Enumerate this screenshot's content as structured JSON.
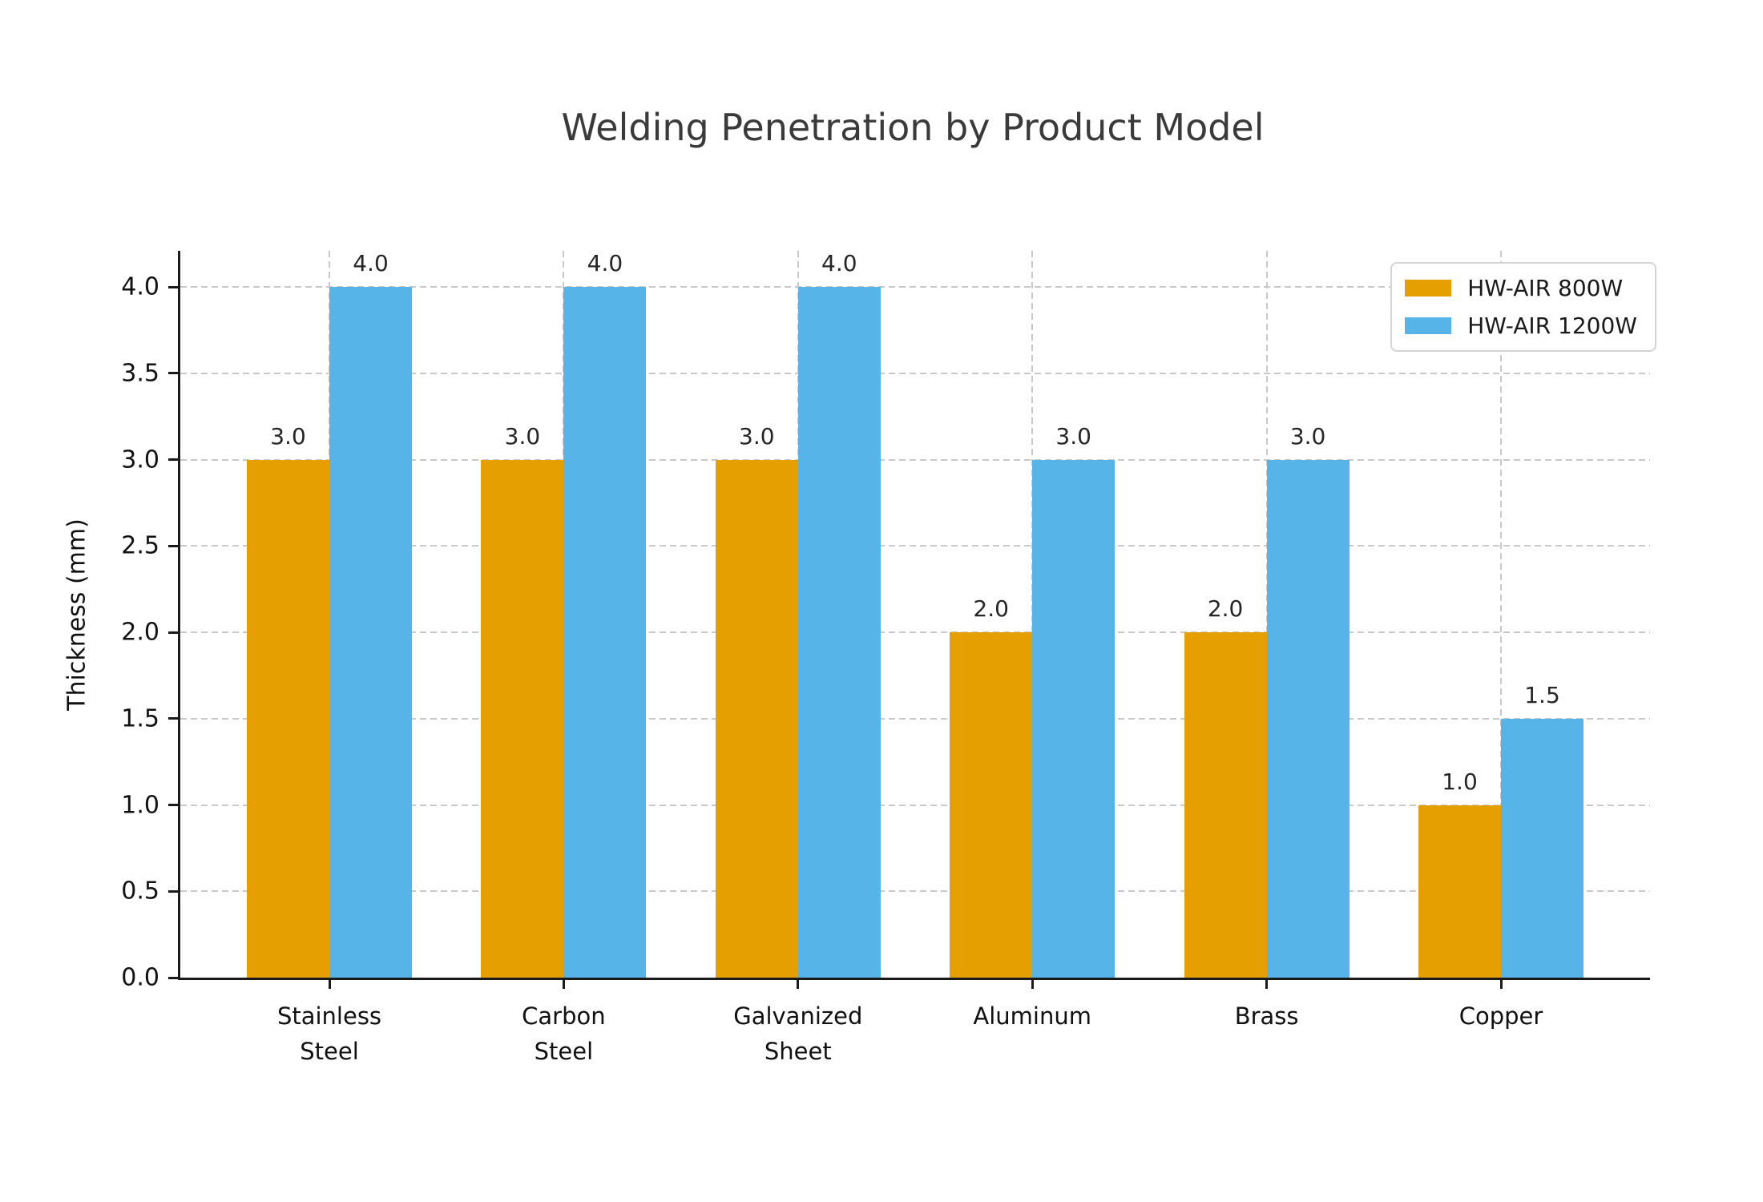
{
  "chart_data": {
    "type": "bar",
    "title": "Welding Penetration by Product Model",
    "xlabel": "",
    "ylabel": "Thickness (mm)",
    "categories": [
      "Stainless\nSteel",
      "Carbon\nSteel",
      "Galvanized\nSheet",
      "Aluminum",
      "Brass",
      "Copper"
    ],
    "series": [
      {
        "name": "HW-AIR 800W",
        "color": "#E69F00",
        "values": [
          3.0,
          3.0,
          3.0,
          2.0,
          2.0,
          1.0
        ]
      },
      {
        "name": "HW-AIR 1200W",
        "color": "#56B4E9",
        "values": [
          4.0,
          4.0,
          4.0,
          3.0,
          3.0,
          1.5
        ]
      }
    ],
    "ylim": [
      0,
      4.21
    ],
    "ytick_labels": [
      "0.0",
      "0.5",
      "1.0",
      "1.5",
      "2.0",
      "2.5",
      "3.0",
      "3.5",
      "4.0"
    ],
    "bar_value_labels": {
      "HW-AIR 800W": [
        "3.0",
        "3.0",
        "3.0",
        "2.0",
        "2.0",
        "1.0"
      ],
      "HW-AIR 1200W": [
        "4.0",
        "4.0",
        "4.0",
        "3.0",
        "3.0",
        "1.5"
      ]
    },
    "grid": {
      "horizontal": true,
      "vertical": true,
      "style": "dashed",
      "color": "#c9c9c9"
    },
    "legend_position": "upper right",
    "background_color": "#ffffff",
    "axis_color": "#1a1a1a",
    "text_color": "#111111",
    "title_color": "#3a3a3a"
  }
}
